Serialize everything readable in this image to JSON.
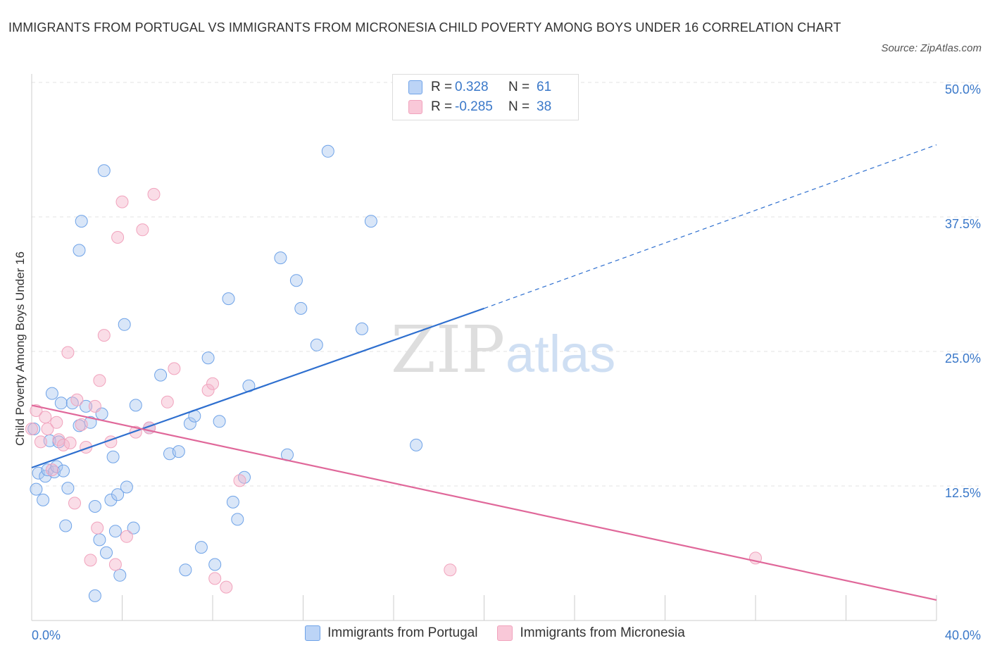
{
  "title": "IMMIGRANTS FROM PORTUGAL VS IMMIGRANTS FROM MICRONESIA CHILD POVERTY AMONG BOYS UNDER 16 CORRELATION CHART",
  "source": "Source: ZipAtlas.com",
  "watermark": {
    "zip": "ZIP",
    "atlas": "atlas"
  },
  "stats_legend": [
    {
      "r_label": "R =",
      "r_value": "0.328",
      "n_label": "N =",
      "n_value": "61"
    },
    {
      "r_label": "R =",
      "r_value": "-0.285",
      "n_label": "N = ",
      "n_value": "38"
    }
  ],
  "chart_data": {
    "type": "scatter",
    "title": "IMMIGRANTS FROM PORTUGAL VS IMMIGRANTS FROM MICRONESIA CHILD POVERTY AMONG BOYS UNDER 16 CORRELATION CHART",
    "xlabel": "",
    "ylabel": "Child Poverty Among Boys Under 16",
    "xlim": [
      0,
      40
    ],
    "ylim": [
      0,
      50
    ],
    "x_tick_labels": [
      "0.0%",
      "40.0%"
    ],
    "y_ticks": [
      12.5,
      25.0,
      37.5,
      50.0
    ],
    "y_tick_labels": [
      "12.5%",
      "25.0%",
      "37.5%",
      "50.0%"
    ],
    "grid": true,
    "legend_position": "bottom-center",
    "colors": {
      "portugal": "#6fa3e8",
      "micronesia": "#f1a3bd",
      "portugal_line": "#2e6fcf",
      "micronesia_line": "#e0689a"
    },
    "series": [
      {
        "name": "Immigrants from Portugal",
        "r": 0.328,
        "n": 61,
        "trend": {
          "x0": 0,
          "y0": 14.2,
          "x1": 20,
          "y1": 29.0,
          "x_dash_end": 40,
          "y_dash_end": 44.2
        },
        "points": [
          [
            0.1,
            17.8
          ],
          [
            0.2,
            12.2
          ],
          [
            0.3,
            13.7
          ],
          [
            0.5,
            11.2
          ],
          [
            0.6,
            13.4
          ],
          [
            0.7,
            14.0
          ],
          [
            0.8,
            16.7
          ],
          [
            0.9,
            21.1
          ],
          [
            1.0,
            13.8
          ],
          [
            1.1,
            14.3
          ],
          [
            1.2,
            16.6
          ],
          [
            1.3,
            20.2
          ],
          [
            1.4,
            13.9
          ],
          [
            1.5,
            8.8
          ],
          [
            1.6,
            12.3
          ],
          [
            1.8,
            20.2
          ],
          [
            2.1,
            18.1
          ],
          [
            2.1,
            34.4
          ],
          [
            2.2,
            37.1
          ],
          [
            2.4,
            19.9
          ],
          [
            2.6,
            18.4
          ],
          [
            2.8,
            10.6
          ],
          [
            3.0,
            7.5
          ],
          [
            3.1,
            19.2
          ],
          [
            3.2,
            41.8
          ],
          [
            3.3,
            6.3
          ],
          [
            3.5,
            11.2
          ],
          [
            3.6,
            15.2
          ],
          [
            3.7,
            8.3
          ],
          [
            3.8,
            11.7
          ],
          [
            3.9,
            4.2
          ],
          [
            4.1,
            27.5
          ],
          [
            4.2,
            12.4
          ],
          [
            4.5,
            8.6
          ],
          [
            4.6,
            20.0
          ],
          [
            5.2,
            17.9
          ],
          [
            5.7,
            22.8
          ],
          [
            6.1,
            15.5
          ],
          [
            6.5,
            15.7
          ],
          [
            6.8,
            4.7
          ],
          [
            7.0,
            18.3
          ],
          [
            7.2,
            19.0
          ],
          [
            7.5,
            6.8
          ],
          [
            7.8,
            24.4
          ],
          [
            8.1,
            5.2
          ],
          [
            8.3,
            18.5
          ],
          [
            8.7,
            29.9
          ],
          [
            8.9,
            11.0
          ],
          [
            9.1,
            9.4
          ],
          [
            9.4,
            13.3
          ],
          [
            9.6,
            21.8
          ],
          [
            11.3,
            15.4
          ],
          [
            11.0,
            33.7
          ],
          [
            11.7,
            31.6
          ],
          [
            11.9,
            29.0
          ],
          [
            12.6,
            25.6
          ],
          [
            13.1,
            43.6
          ],
          [
            14.6,
            27.1
          ],
          [
            15.0,
            37.1
          ],
          [
            17.0,
            16.3
          ],
          [
            2.8,
            2.3
          ]
        ]
      },
      {
        "name": "Immigrants from Micronesia",
        "r": -0.285,
        "n": 38,
        "trend": {
          "x0": 0,
          "y0": 20.0,
          "x1": 40,
          "y1": 1.9
        },
        "points": [
          [
            0.0,
            17.8
          ],
          [
            0.2,
            19.5
          ],
          [
            0.4,
            16.6
          ],
          [
            0.6,
            18.9
          ],
          [
            0.7,
            17.8
          ],
          [
            0.9,
            14.0
          ],
          [
            1.1,
            18.4
          ],
          [
            1.2,
            16.8
          ],
          [
            1.4,
            16.3
          ],
          [
            1.6,
            24.9
          ],
          [
            1.7,
            16.5
          ],
          [
            1.9,
            10.9
          ],
          [
            2.0,
            20.5
          ],
          [
            2.2,
            18.2
          ],
          [
            2.4,
            16.1
          ],
          [
            2.6,
            5.6
          ],
          [
            2.8,
            19.9
          ],
          [
            2.9,
            8.6
          ],
          [
            3.0,
            22.3
          ],
          [
            3.2,
            26.5
          ],
          [
            3.5,
            16.6
          ],
          [
            3.7,
            5.2
          ],
          [
            3.8,
            35.6
          ],
          [
            4.0,
            38.9
          ],
          [
            4.2,
            7.8
          ],
          [
            4.6,
            17.5
          ],
          [
            4.9,
            36.3
          ],
          [
            5.2,
            17.9
          ],
          [
            5.4,
            39.6
          ],
          [
            6.0,
            20.3
          ],
          [
            6.3,
            23.4
          ],
          [
            7.8,
            21.4
          ],
          [
            8.0,
            22.0
          ],
          [
            8.1,
            3.9
          ],
          [
            8.6,
            3.1
          ],
          [
            9.2,
            13.0
          ],
          [
            18.5,
            4.7
          ],
          [
            32.0,
            5.8
          ]
        ]
      }
    ]
  }
}
